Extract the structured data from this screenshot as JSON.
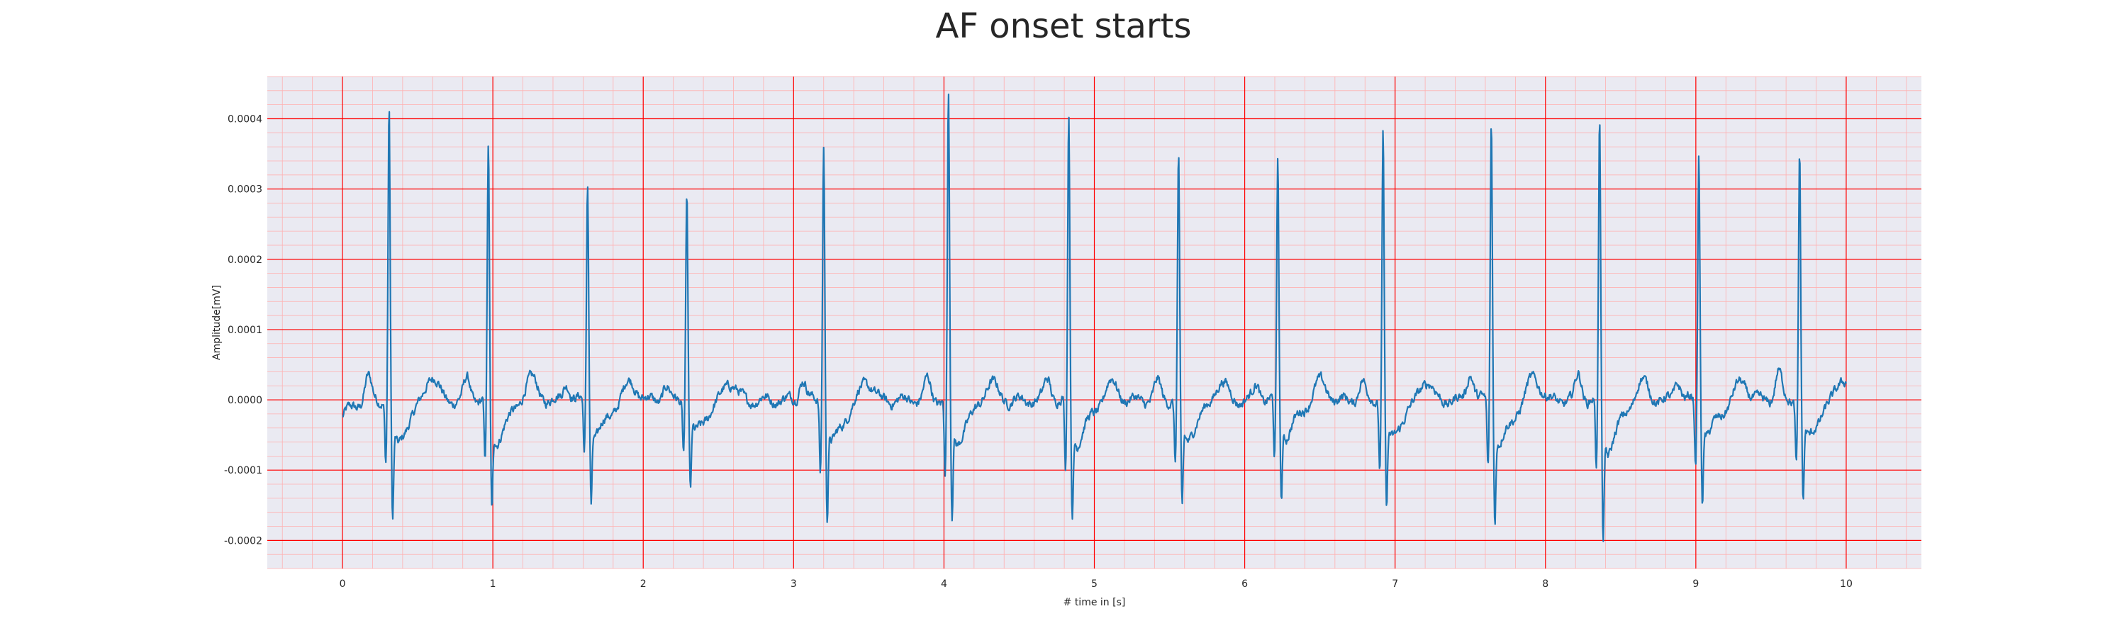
{
  "chart_data": {
    "type": "line",
    "title": "AF onset starts",
    "xlabel": "# time in [s]",
    "ylabel": "Amplitude[mV]",
    "xlim": [
      -0.5,
      10.5
    ],
    "ylim": [
      -0.00024,
      0.00046
    ],
    "x_ticks": [
      0,
      1,
      2,
      3,
      4,
      5,
      6,
      7,
      8,
      9,
      10
    ],
    "x_tick_labels": [
      "0",
      "1",
      "2",
      "3",
      "4",
      "5",
      "6",
      "7",
      "8",
      "9",
      "10"
    ],
    "y_ticks": [
      -0.0002,
      -0.0001,
      0.0,
      0.0001,
      0.0002,
      0.0003,
      0.0004
    ],
    "y_tick_labels": [
      "-0.0002",
      "-0.0001",
      "0.0000",
      "0.0001",
      "0.0002",
      "0.0003",
      "0.0004"
    ],
    "grid": true,
    "minor_grid": true,
    "colors": {
      "background": "#eaeaf2",
      "major_grid": "#ff0000",
      "minor_grid": "#ffb0b0",
      "line": "#1f77b4",
      "text": "#262626"
    },
    "signal": {
      "x_start": 0.0,
      "x_end": 10.0,
      "baseline_start": -2.5e-05,
      "beats": [
        {
          "t": 0.31,
          "r": 0.000418,
          "s": -0.000175,
          "q": -8.5e-05,
          "p": 3.5e-05,
          "tw": 4e-05
        },
        {
          "t": 0.97,
          "r": 0.00036,
          "s": -0.00016,
          "q": -9e-05,
          "p": 3e-05,
          "tw": 3.5e-05
        },
        {
          "t": 1.63,
          "r": 0.000312,
          "s": -0.000142,
          "q": -7.5e-05,
          "p": 2.5e-05,
          "tw": 3e-05
        },
        {
          "t": 2.29,
          "r": 0.000298,
          "s": -0.00013,
          "q": -7e-05,
          "p": 2e-05,
          "tw": 3e-05
        },
        {
          "t": 3.2,
          "r": 0.000368,
          "s": -0.00017,
          "q": -0.0001,
          "p": 3e-05,
          "tw": 3.2e-05
        },
        {
          "t": 4.03,
          "r": 0.000432,
          "s": -0.00017,
          "q": -0.000105,
          "p": 2.8e-05,
          "tw": 3e-05
        },
        {
          "t": 4.83,
          "r": 0.000408,
          "s": -0.000168,
          "q": -0.000105,
          "p": 3e-05,
          "tw": 3e-05
        },
        {
          "t": 5.56,
          "r": 0.000347,
          "s": -0.000158,
          "q": -9e-05,
          "p": 2.5e-05,
          "tw": 3e-05
        },
        {
          "t": 6.22,
          "r": 0.000342,
          "s": -0.00014,
          "q": -8.5e-05,
          "p": 2.2e-05,
          "tw": 3e-05
        },
        {
          "t": 6.92,
          "r": 0.00038,
          "s": -0.000155,
          "q": -9.5e-05,
          "p": 2.5e-05,
          "tw": 3.2e-05
        },
        {
          "t": 7.64,
          "r": 0.000402,
          "s": -0.000175,
          "q": -9.8e-05,
          "p": 4e-05,
          "tw": 3.8e-05
        },
        {
          "t": 8.36,
          "r": 0.000395,
          "s": -0.0002,
          "q": -0.0001,
          "p": 3.5e-05,
          "tw": 3.2e-05
        },
        {
          "t": 9.02,
          "r": 0.000352,
          "s": -0.00014,
          "q": -9.8e-05,
          "p": 2.8e-05,
          "tw": 3e-05
        },
        {
          "t": 9.69,
          "r": 0.000357,
          "s": -0.000148,
          "q": -9e-05,
          "p": 4e-05,
          "tw": 3.5e-05
        }
      ]
    }
  }
}
